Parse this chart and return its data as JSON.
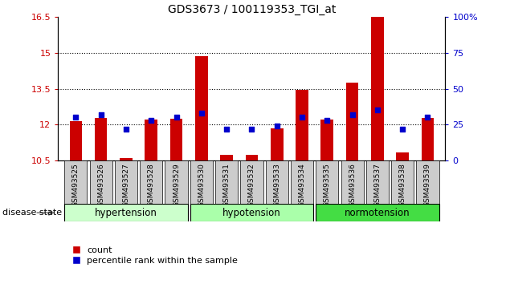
{
  "title": "GDS3673 / 100119353_TGI_at",
  "samples": [
    "GSM493525",
    "GSM493526",
    "GSM493527",
    "GSM493528",
    "GSM493529",
    "GSM493530",
    "GSM493531",
    "GSM493532",
    "GSM493533",
    "GSM493534",
    "GSM493535",
    "GSM493536",
    "GSM493537",
    "GSM493538",
    "GSM493539"
  ],
  "red_values": [
    12.15,
    12.28,
    10.6,
    12.22,
    12.25,
    14.85,
    10.75,
    10.75,
    11.85,
    13.45,
    12.2,
    13.75,
    16.5,
    10.82,
    12.28
  ],
  "blue_percentiles": [
    30,
    32,
    22,
    28,
    30,
    33,
    22,
    22,
    24,
    30,
    28,
    32,
    35,
    22,
    30
  ],
  "ylim_left": [
    10.5,
    16.5
  ],
  "ylim_right": [
    0,
    100
  ],
  "yticks_left": [
    10.5,
    12.0,
    13.5,
    15.0,
    16.5
  ],
  "yticks_right": [
    0,
    25,
    50,
    75,
    100
  ],
  "ytick_labels_left": [
    "10.5",
    "12",
    "13.5",
    "15",
    "16.5"
  ],
  "ytick_labels_right": [
    "0",
    "25",
    "50",
    "75",
    "100%"
  ],
  "grid_lines": [
    12.0,
    13.5,
    15.0
  ],
  "group_configs": [
    {
      "label": "hypertension",
      "start": 0,
      "end": 4,
      "color": "#ccffcc"
    },
    {
      "label": "hypotension",
      "start": 5,
      "end": 9,
      "color": "#aaffaa"
    },
    {
      "label": "normotension",
      "start": 10,
      "end": 14,
      "color": "#44dd44"
    }
  ],
  "bar_color": "#cc0000",
  "dot_color": "#0000cc",
  "bar_width": 0.5,
  "baseline": 10.5,
  "legend_count_label": "count",
  "legend_pct_label": "percentile rank within the sample",
  "disease_state_label": "disease state",
  "left_axis_color": "#cc0000",
  "right_axis_color": "#0000cc",
  "xtick_bg_color": "#cccccc"
}
